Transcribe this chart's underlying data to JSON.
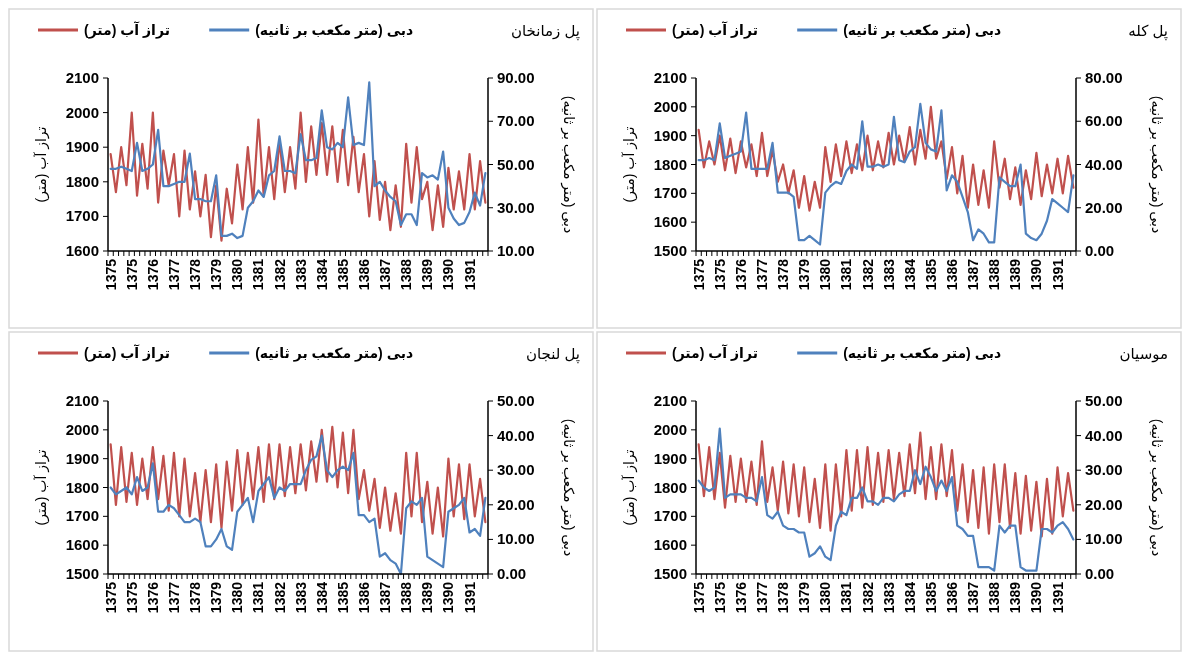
{
  "chart_data": [
    {
      "type": "line",
      "title": "پل زمانخان",
      "ylabel": "تراز آب (متر)",
      "y2label": "دبی (متر مکعب بر ثانیه)",
      "legend": "top",
      "categories": [
        "1375",
        null,
        null,
        null,
        "1375",
        null,
        null,
        null,
        "1376",
        null,
        null,
        null,
        "1377",
        null,
        null,
        null,
        "1378",
        null,
        null,
        null,
        "1379",
        null,
        null,
        null,
        "1380",
        null,
        null,
        null,
        "1381",
        null,
        null,
        null,
        "1382",
        null,
        null,
        null,
        "1383",
        null,
        null,
        null,
        "1384",
        null,
        null,
        null,
        "1385",
        null,
        null,
        null,
        "1386",
        null,
        null,
        null,
        "1387",
        null,
        null,
        null,
        "1388",
        null,
        null,
        null,
        "1389",
        null,
        null,
        null,
        "1390",
        null,
        null,
        null,
        "1391",
        null,
        null,
        null
      ],
      "ylim": [
        1600,
        2100
      ],
      "yticks": [
        1600,
        1700,
        1800,
        1900,
        2000,
        2100
      ],
      "y2lim": [
        10,
        90
      ],
      "y2ticks": [
        {
          "value": 10,
          "label": "10.00"
        },
        {
          "value": 30,
          "label": "30.00"
        },
        {
          "value": 50,
          "label": "50.00"
        },
        {
          "value": 70,
          "label": "70.00"
        },
        {
          "value": 90,
          "label": "90.00"
        }
      ],
      "series": [
        {
          "name": "تراز آب (متر)",
          "color": "#c0504d",
          "values": [
            1880,
            1770,
            1900,
            1790,
            2000,
            1760,
            1910,
            1780,
            2000,
            1740,
            1890,
            1790,
            1880,
            1700,
            1890,
            1720,
            1830,
            1700,
            1820,
            1640,
            1790,
            1630,
            1780,
            1680,
            1850,
            1720,
            1900,
            1740,
            1980,
            1760,
            1900,
            1750,
            1920,
            1770,
            1900,
            1780,
            2000,
            1800,
            1960,
            1820,
            1970,
            1820,
            1960,
            1800,
            1950,
            1790,
            1930,
            1770,
            1880,
            1700,
            1860,
            1690,
            1800,
            1660,
            1790,
            1670,
            1910,
            1740,
            1900,
            1750,
            1800,
            1660,
            1790,
            1670,
            1840,
            1720,
            1830,
            1720,
            1880,
            1720,
            1860,
            1740
          ]
        },
        {
          "name": "دبی (متر مکعب بر ثانیه)",
          "color": "#4f81bd",
          "axis": "y2",
          "values": [
            48,
            48,
            49,
            48,
            47,
            60,
            47,
            48,
            50,
            66,
            40,
            40,
            41,
            42,
            42,
            55,
            34,
            34,
            33,
            33,
            45,
            17,
            17,
            18,
            16,
            17,
            30,
            33,
            38,
            35,
            45,
            47,
            63,
            47,
            47,
            46,
            64,
            52,
            52,
            53,
            75,
            58,
            57,
            60,
            58,
            81,
            59,
            60,
            59,
            88,
            40,
            42,
            38,
            35,
            33,
            22,
            27,
            27,
            22,
            46,
            44,
            45,
            43,
            56,
            30,
            25,
            22,
            23,
            28,
            37,
            31,
            46
          ]
        }
      ]
    },
    {
      "type": "line",
      "title": "پل کله",
      "ylabel": "تراز آب (متر)",
      "y2label": "دبی (متر مکعب بر ثانیه)",
      "legend": "top",
      "categories": [
        "1375",
        null,
        null,
        null,
        "1375",
        null,
        null,
        null,
        "1376",
        null,
        null,
        null,
        "1377",
        null,
        null,
        null,
        "1378",
        null,
        null,
        null,
        "1379",
        null,
        null,
        null,
        "1380",
        null,
        null,
        null,
        "1381",
        null,
        null,
        null,
        "1382",
        null,
        null,
        null,
        "1383",
        null,
        null,
        null,
        "1384",
        null,
        null,
        null,
        "1385",
        null,
        null,
        null,
        "1386",
        null,
        null,
        null,
        "1387",
        null,
        null,
        null,
        "1388",
        null,
        null,
        null,
        "1389",
        null,
        null,
        null,
        "1390",
        null,
        null,
        null,
        "1391",
        null,
        null,
        null
      ],
      "ylim": [
        1500,
        2100
      ],
      "yticks": [
        1500,
        1600,
        1700,
        1800,
        1900,
        2000,
        2100
      ],
      "y2lim": [
        0,
        80
      ],
      "y2ticks": [
        {
          "value": 0,
          "label": "0.00"
        },
        {
          "value": 20,
          "label": "20.00"
        },
        {
          "value": 40,
          "label": "40.00"
        },
        {
          "value": 60,
          "label": "60.00"
        },
        {
          "value": 80,
          "label": "80.00"
        }
      ],
      "series": [
        {
          "name": "تراز آب (متر)",
          "color": "#c0504d",
          "values": [
            1920,
            1790,
            1880,
            1800,
            1900,
            1780,
            1890,
            1770,
            1880,
            1790,
            1870,
            1760,
            1910,
            1760,
            1850,
            1740,
            1800,
            1700,
            1780,
            1650,
            1760,
            1640,
            1740,
            1650,
            1860,
            1740,
            1870,
            1760,
            1880,
            1770,
            1870,
            1780,
            1900,
            1780,
            1880,
            1790,
            1910,
            1800,
            1900,
            1810,
            1930,
            1800,
            1920,
            1820,
            2000,
            1820,
            1880,
            1750,
            1860,
            1700,
            1830,
            1650,
            1800,
            1660,
            1780,
            1650,
            1880,
            1720,
            1820,
            1680,
            1790,
            1660,
            1780,
            1680,
            1840,
            1690,
            1800,
            1700,
            1820,
            1700,
            1830,
            1720
          ]
        },
        {
          "name": "دبی (متر مکعب بر ثانیه)",
          "color": "#4f81bd",
          "axis": "y2",
          "values": [
            42,
            42,
            43,
            42,
            59,
            43,
            44,
            45,
            46,
            64,
            38,
            38,
            38,
            38,
            50,
            27,
            27,
            27,
            25,
            5,
            5,
            7,
            5,
            3,
            27,
            30,
            32,
            31,
            37,
            40,
            38,
            60,
            39,
            39,
            40,
            39,
            40,
            62,
            42,
            41,
            46,
            48,
            68,
            50,
            47,
            46,
            65,
            28,
            35,
            32,
            25,
            18,
            5,
            10,
            8,
            4,
            4,
            34,
            32,
            30,
            30,
            40,
            8,
            6,
            5,
            8,
            14,
            24,
            22,
            20,
            18,
            35
          ]
        }
      ]
    },
    {
      "type": "line",
      "title": "پل لنجان",
      "ylabel": "تراز آب (متر)",
      "y2label": "دبی (متر مکعب بر ثانیه)",
      "legend": "top",
      "categories": [
        "1375",
        null,
        null,
        null,
        "1375",
        null,
        null,
        null,
        "1376",
        null,
        null,
        null,
        "1377",
        null,
        null,
        null,
        "1378",
        null,
        null,
        null,
        "1379",
        null,
        null,
        null,
        "1380",
        null,
        null,
        null,
        "1381",
        null,
        null,
        null,
        "1382",
        null,
        null,
        null,
        "1383",
        null,
        null,
        null,
        "1384",
        null,
        null,
        null,
        "1385",
        null,
        null,
        null,
        "1386",
        null,
        null,
        null,
        "1387",
        null,
        null,
        null,
        "1388",
        null,
        null,
        null,
        "1389",
        null,
        null,
        null,
        "1390",
        null,
        null,
        null,
        "1391",
        null,
        null,
        null
      ],
      "ylim": [
        1500,
        2100
      ],
      "yticks": [
        1500,
        1600,
        1700,
        1800,
        1900,
        2000,
        2100
      ],
      "y2lim": [
        0,
        50
      ],
      "y2ticks": [
        {
          "value": 0,
          "label": "0.00"
        },
        {
          "value": 10,
          "label": "10.00"
        },
        {
          "value": 20,
          "label": "20.00"
        },
        {
          "value": 30,
          "label": "30.00"
        },
        {
          "value": 40,
          "label": "40.00"
        },
        {
          "value": 50,
          "label": "50.00"
        }
      ],
      "series": [
        {
          "name": "تراز آب (متر)",
          "color": "#c0504d",
          "values": [
            1950,
            1740,
            1940,
            1750,
            1920,
            1740,
            1900,
            1760,
            1940,
            1760,
            1910,
            1720,
            1920,
            1700,
            1900,
            1700,
            1850,
            1680,
            1860,
            1680,
            1880,
            1660,
            1890,
            1720,
            1930,
            1740,
            1920,
            1760,
            1940,
            1750,
            1950,
            1760,
            1950,
            1770,
            1940,
            1780,
            1950,
            1790,
            1960,
            1820,
            2000,
            1820,
            2010,
            1800,
            1990,
            1780,
            2000,
            1760,
            1860,
            1720,
            1830,
            1660,
            1800,
            1650,
            1780,
            1640,
            1920,
            1700,
            1920,
            1680,
            1820,
            1640,
            1800,
            1630,
            1900,
            1700,
            1880,
            1690,
            1880,
            1700,
            1830,
            1680
          ]
        },
        {
          "name": "دبی (متر مکعب بر ثانیه)",
          "color": "#4f81bd",
          "axis": "y2",
          "values": [
            25,
            23,
            24,
            25,
            23,
            28,
            24,
            25,
            32,
            18,
            18,
            20,
            19,
            17,
            15,
            15,
            16,
            15,
            8,
            8,
            10,
            13,
            8,
            7,
            18,
            20,
            22,
            15,
            24,
            26,
            28,
            22,
            25,
            24,
            26,
            26,
            26,
            30,
            33,
            34,
            40,
            30,
            28,
            30,
            31,
            30,
            35,
            17,
            17,
            15,
            16,
            5,
            6,
            4,
            3,
            0,
            19,
            21,
            20,
            22,
            5,
            4,
            3,
            2,
            18,
            19,
            20,
            22,
            12,
            13,
            11,
            22
          ]
        }
      ]
    },
    {
      "type": "line",
      "title": "موسیان",
      "ylabel": "تراز آب (متر)",
      "y2label": "دبی (متر مکعب بر ثانیه)",
      "legend": "top",
      "categories": [
        "1375",
        null,
        null,
        null,
        "1375",
        null,
        null,
        null,
        "1376",
        null,
        null,
        null,
        "1377",
        null,
        null,
        null,
        "1378",
        null,
        null,
        null,
        "1379",
        null,
        null,
        null,
        "1380",
        null,
        null,
        null,
        "1381",
        null,
        null,
        null,
        "1382",
        null,
        null,
        null,
        "1383",
        null,
        null,
        null,
        "1384",
        null,
        null,
        null,
        "1385",
        null,
        null,
        null,
        "1386",
        null,
        null,
        null,
        "1387",
        null,
        null,
        null,
        "1388",
        null,
        null,
        null,
        "1389",
        null,
        null,
        null,
        "1390",
        null,
        null,
        null,
        "1391",
        null,
        null,
        null
      ],
      "ylim": [
        1500,
        2100
      ],
      "yticks": [
        1500,
        1600,
        1700,
        1800,
        1900,
        2000,
        2100
      ],
      "y2lim": [
        0,
        50
      ],
      "y2ticks": [
        {
          "value": 0,
          "label": "0.00"
        },
        {
          "value": 10,
          "label": "10.00"
        },
        {
          "value": 20,
          "label": "20.00"
        },
        {
          "value": 30,
          "label": "30.00"
        },
        {
          "value": 40,
          "label": "40.00"
        },
        {
          "value": 50,
          "label": "50.00"
        }
      ],
      "series": [
        {
          "name": "تراز آب (متر)",
          "color": "#c0504d",
          "values": [
            1950,
            1770,
            1940,
            1760,
            1920,
            1730,
            1910,
            1750,
            1900,
            1750,
            1890,
            1740,
            1960,
            1750,
            1870,
            1720,
            1890,
            1710,
            1880,
            1700,
            1870,
            1680,
            1830,
            1660,
            1880,
            1650,
            1880,
            1700,
            1930,
            1720,
            1930,
            1730,
            1940,
            1740,
            1920,
            1750,
            1930,
            1760,
            1920,
            1770,
            1950,
            1780,
            1990,
            1760,
            1940,
            1760,
            1950,
            1770,
            1930,
            1720,
            1880,
            1680,
            1860,
            1660,
            1870,
            1640,
            1880,
            1680,
            1880,
            1660,
            1850,
            1640,
            1840,
            1650,
            1820,
            1630,
            1830,
            1640,
            1870,
            1700,
            1850,
            1720
          ]
        },
        {
          "name": "دبی (متر مکعب بر ثانیه)",
          "color": "#4f81bd",
          "axis": "y2",
          "values": [
            27,
            25,
            24,
            25,
            42,
            22,
            23,
            23,
            23,
            22,
            22,
            21,
            28,
            17,
            16,
            18,
            14,
            13,
            13,
            12,
            12,
            5,
            6,
            8,
            5,
            4,
            14,
            18,
            17,
            22,
            22,
            25,
            21,
            21,
            20,
            22,
            22,
            21,
            23,
            24,
            24,
            30,
            26,
            31,
            28,
            24,
            27,
            24,
            28,
            14,
            13,
            11,
            11,
            2,
            2,
            2,
            1,
            14,
            12,
            14,
            14,
            2,
            1,
            1,
            1,
            13,
            13,
            12,
            14,
            15,
            13,
            10
          ]
        }
      ]
    }
  ]
}
